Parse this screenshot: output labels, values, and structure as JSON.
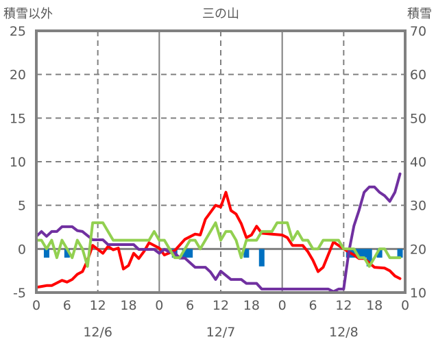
{
  "chart_data": {
    "type": "line",
    "title": "三の山",
    "ylabel_left": "積雪以外",
    "ylabel_right": "積雪",
    "ylim_left": [
      -5,
      25
    ],
    "ylim_right": [
      10,
      70
    ],
    "yticks_left": [
      "25",
      "20",
      "15",
      "10",
      "5",
      "0",
      "-5"
    ],
    "yticks_right": [
      "70",
      "60",
      "50",
      "40",
      "30",
      "20",
      "10"
    ],
    "xlim_hours": [
      0,
      72
    ],
    "xticks": [
      "0",
      "6",
      "12",
      "18",
      "0",
      "6",
      "12",
      "18",
      "0",
      "6",
      "12",
      "18",
      "0"
    ],
    "dates": [
      "12/6",
      "12/7",
      "12/8"
    ],
    "grid": "dashed horizontal at 5-unit steps, dashed vertical at 12h, solid vertical at day boundaries",
    "series": [
      {
        "color": "#ff0000",
        "axis": "left",
        "type": "line",
        "points": [
          [
            0,
            -4.4
          ],
          [
            1,
            -4.3
          ],
          [
            2,
            -4.2
          ],
          [
            3,
            -4.2
          ],
          [
            4,
            -3.9
          ],
          [
            5,
            -3.6
          ],
          [
            6,
            -3.8
          ],
          [
            7,
            -3.5
          ],
          [
            8,
            -2.9
          ],
          [
            9,
            -2.6
          ],
          [
            10,
            -1.3
          ],
          [
            11,
            0.4
          ],
          [
            13,
            -0.5
          ],
          [
            14,
            0.3
          ],
          [
            15,
            -0.1
          ],
          [
            16,
            0.1
          ],
          [
            17,
            -2.3
          ],
          [
            18,
            -1.9
          ],
          [
            19,
            -0.5
          ],
          [
            20,
            -1.1
          ],
          [
            21,
            -0.3
          ],
          [
            22,
            0.7
          ],
          [
            24,
            0.1
          ],
          [
            25,
            -0.7
          ],
          [
            27,
            -0.2
          ],
          [
            29,
            1.1
          ],
          [
            31,
            1.7
          ],
          [
            32,
            1.6
          ],
          [
            33,
            3.4
          ],
          [
            35,
            5.0
          ],
          [
            36,
            4.8
          ],
          [
            37,
            6.5
          ],
          [
            38,
            4.4
          ],
          [
            39,
            4.0
          ],
          [
            40,
            2.9
          ],
          [
            41,
            1.3
          ],
          [
            42,
            1.6
          ],
          [
            43,
            2.6
          ],
          [
            44,
            1.8
          ],
          [
            46,
            1.7
          ],
          [
            48,
            1.6
          ],
          [
            49,
            1.3
          ],
          [
            50,
            0.4
          ],
          [
            52,
            0.4
          ],
          [
            53,
            -0.3
          ],
          [
            54,
            -1.3
          ],
          [
            55,
            -2.6
          ],
          [
            56,
            -2.1
          ],
          [
            58,
            0.8
          ],
          [
            60,
            0.0
          ],
          [
            62,
            -0.7
          ],
          [
            63,
            -1.1
          ],
          [
            64,
            -1.1
          ],
          [
            66,
            -2.1
          ],
          [
            68,
            -2.2
          ],
          [
            69,
            -2.5
          ],
          [
            70,
            -3.1
          ],
          [
            71,
            -3.4
          ]
        ]
      },
      {
        "color": "#7030a0",
        "axis": "right",
        "type": "line",
        "points": [
          [
            0,
            22.9
          ],
          [
            1,
            24.0
          ],
          [
            2,
            22.9
          ],
          [
            3,
            24.0
          ],
          [
            4,
            24.0
          ],
          [
            5,
            25.1
          ],
          [
            7,
            25.1
          ],
          [
            8,
            24.2
          ],
          [
            9,
            24.0
          ],
          [
            11,
            22.1
          ],
          [
            13,
            22.1
          ],
          [
            14,
            21.0
          ],
          [
            19,
            21.0
          ],
          [
            20,
            19.9
          ],
          [
            23,
            19.9
          ],
          [
            24,
            19.0
          ],
          [
            25,
            19.9
          ],
          [
            26,
            19.3
          ],
          [
            27,
            19.1
          ],
          [
            28,
            17.9
          ],
          [
            29,
            17.9
          ],
          [
            31,
            15.8
          ],
          [
            33,
            15.8
          ],
          [
            34,
            14.7
          ],
          [
            35,
            13.0
          ],
          [
            36,
            14.9
          ],
          [
            38,
            13.0
          ],
          [
            40,
            13.0
          ],
          [
            41,
            12.1
          ],
          [
            43,
            12.1
          ],
          [
            44,
            10.8
          ],
          [
            57,
            10.8
          ],
          [
            58,
            10.2
          ],
          [
            59,
            10.8
          ],
          [
            60,
            10.8
          ],
          [
            61,
            19.3
          ],
          [
            62,
            25.3
          ],
          [
            63,
            28.9
          ],
          [
            64,
            33.0
          ],
          [
            65,
            34.2
          ],
          [
            66,
            34.2
          ],
          [
            67,
            33.0
          ],
          [
            68,
            32.2
          ],
          [
            69,
            30.9
          ],
          [
            70,
            33.0
          ],
          [
            71,
            37.2
          ]
        ]
      },
      {
        "color": "#92d050",
        "axis": "left",
        "type": "line",
        "points": [
          [
            0,
            1
          ],
          [
            1,
            1
          ],
          [
            2,
            0
          ],
          [
            3,
            1
          ],
          [
            4,
            -1
          ],
          [
            5,
            1
          ],
          [
            7,
            -1
          ],
          [
            8,
            1
          ],
          [
            9,
            0
          ],
          [
            10,
            -2
          ],
          [
            11,
            3
          ],
          [
            13,
            3
          ],
          [
            15,
            1
          ],
          [
            22,
            1
          ],
          [
            23,
            2
          ],
          [
            24,
            1
          ],
          [
            25,
            1
          ],
          [
            27,
            -1
          ],
          [
            28,
            -1
          ],
          [
            30,
            1
          ],
          [
            31,
            1
          ],
          [
            32,
            0
          ],
          [
            35,
            3
          ],
          [
            36,
            1
          ],
          [
            37,
            2
          ],
          [
            38,
            2
          ],
          [
            39,
            1
          ],
          [
            40,
            -1
          ],
          [
            41,
            1
          ],
          [
            43,
            1
          ],
          [
            44,
            2
          ],
          [
            46,
            2
          ],
          [
            47,
            3
          ],
          [
            49,
            3
          ],
          [
            50,
            1
          ],
          [
            51,
            2
          ],
          [
            52,
            1
          ],
          [
            53,
            1
          ],
          [
            54,
            0
          ],
          [
            55,
            0
          ],
          [
            56,
            1
          ],
          [
            59,
            1
          ],
          [
            60,
            0
          ],
          [
            62,
            0
          ],
          [
            63,
            -1
          ],
          [
            64,
            -1
          ],
          [
            65,
            -2
          ],
          [
            66,
            -1
          ],
          [
            67,
            0
          ],
          [
            68,
            0
          ],
          [
            69,
            -1
          ],
          [
            71,
            -1
          ]
        ]
      },
      {
        "color": "#0070c0",
        "axis": "left",
        "type": "bar",
        "points": [
          [
            2,
            -1
          ],
          [
            6,
            -1
          ],
          [
            27,
            -1
          ],
          [
            29,
            -1
          ],
          [
            30,
            -1
          ],
          [
            41,
            -1
          ],
          [
            44,
            -2
          ],
          [
            61,
            -1
          ],
          [
            62,
            -1
          ],
          [
            63,
            -1
          ],
          [
            64,
            -1
          ],
          [
            65,
            -2
          ],
          [
            67,
            -1
          ],
          [
            71,
            -1
          ]
        ]
      }
    ]
  }
}
